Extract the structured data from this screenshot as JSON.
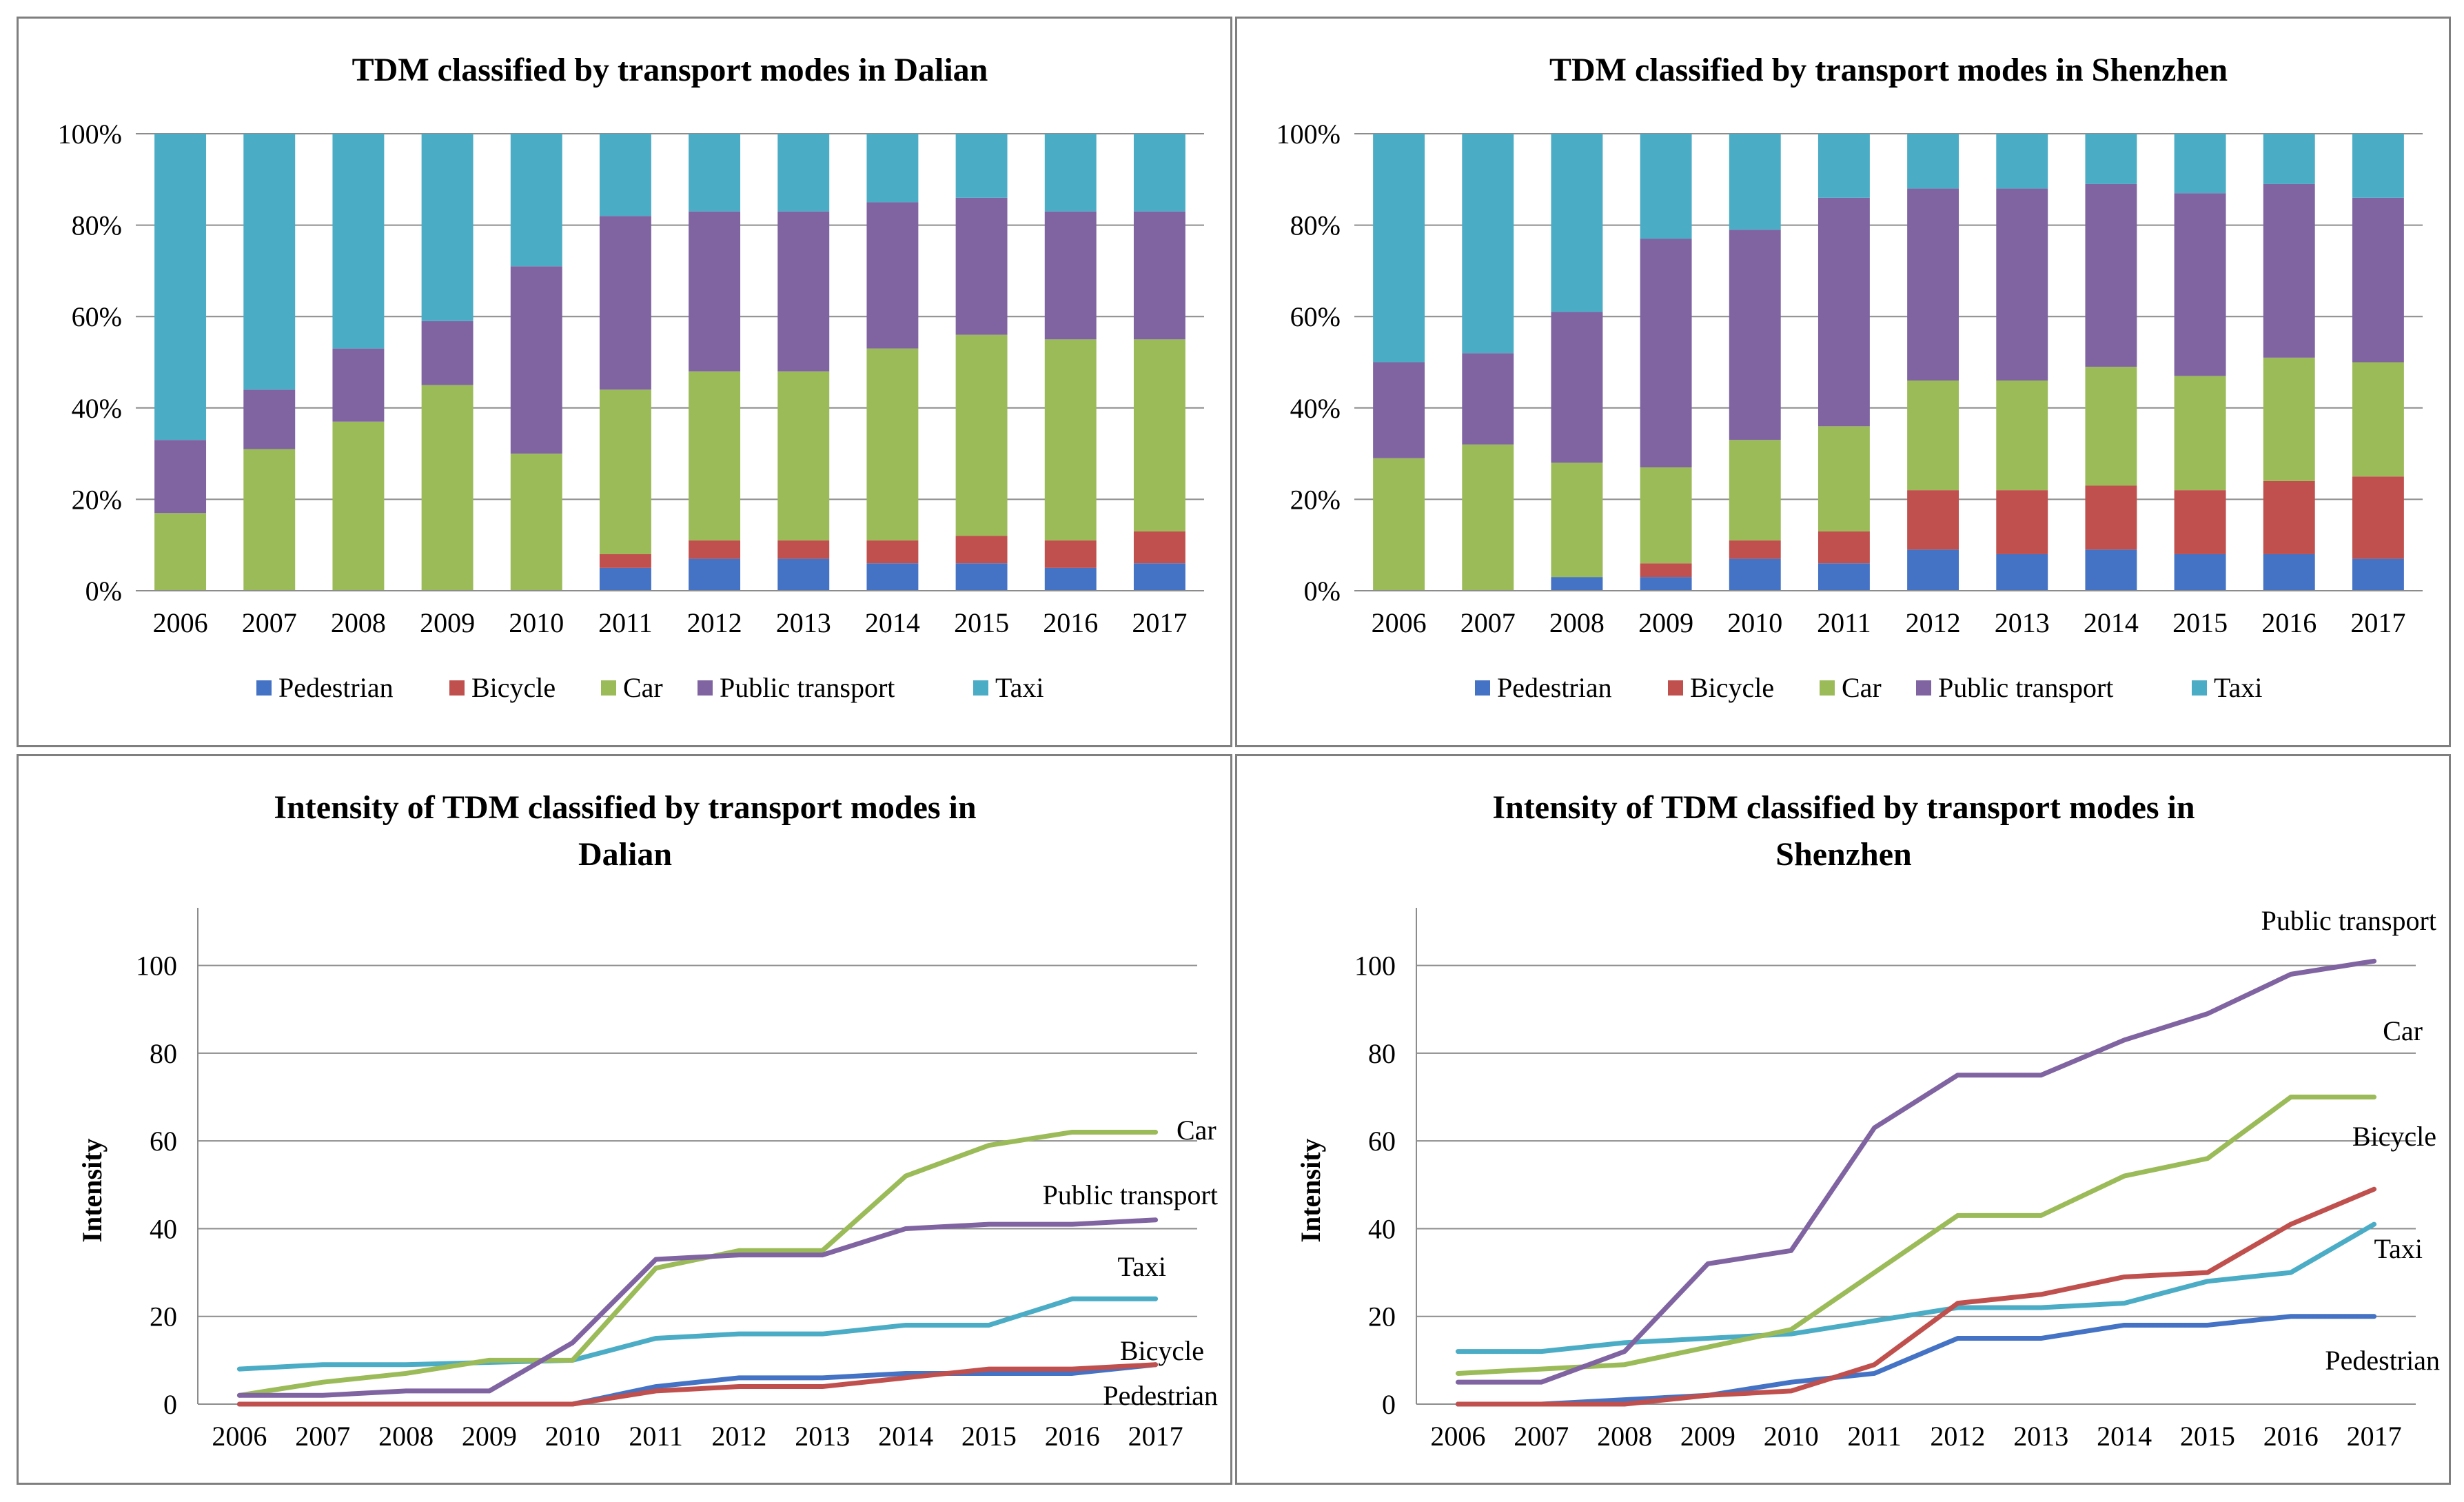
{
  "chart_data": [
    {
      "id": "dalian-share",
      "type": "bar",
      "stacked": true,
      "title": "TDM classified by transport modes in Dalian",
      "categories": [
        "2006",
        "2007",
        "2008",
        "2009",
        "2010",
        "2011",
        "2012",
        "2013",
        "2014",
        "2015",
        "2016",
        "2017"
      ],
      "yticks": [
        "0%",
        "20%",
        "40%",
        "60%",
        "80%",
        "100%"
      ],
      "ylim": [
        0,
        100
      ],
      "grid": true,
      "legend": "bottom",
      "series": [
        {
          "name": "Pedestrian",
          "color": "#4472c4",
          "values": [
            0,
            0,
            0,
            0,
            0,
            5,
            7,
            7,
            6,
            6,
            5,
            6
          ]
        },
        {
          "name": "Bicycle",
          "color": "#c0504d",
          "values": [
            0,
            0,
            0,
            0,
            0,
            3,
            4,
            4,
            5,
            6,
            6,
            7
          ]
        },
        {
          "name": "Car",
          "color": "#9bbb59",
          "values": [
            17,
            31,
            37,
            45,
            30,
            36,
            37,
            37,
            42,
            44,
            44,
            42
          ]
        },
        {
          "name": "Public transport",
          "color": "#8064a2",
          "values": [
            16,
            13,
            16,
            14,
            41,
            38,
            35,
            35,
            32,
            30,
            28,
            28
          ]
        },
        {
          "name": "Taxi",
          "color": "#4bacc6",
          "values": [
            67,
            56,
            47,
            41,
            29,
            18,
            17,
            17,
            15,
            14,
            17,
            17
          ]
        }
      ]
    },
    {
      "id": "shenzhen-share",
      "type": "bar",
      "stacked": true,
      "title": "TDM classified by transport modes in Shenzhen",
      "categories": [
        "2006",
        "2007",
        "2008",
        "2009",
        "2010",
        "2011",
        "2012",
        "2013",
        "2014",
        "2015",
        "2016",
        "2017"
      ],
      "yticks": [
        "0%",
        "20%",
        "40%",
        "60%",
        "80%",
        "100%"
      ],
      "ylim": [
        0,
        100
      ],
      "grid": true,
      "legend": "bottom",
      "series": [
        {
          "name": "Pedestrian",
          "color": "#4472c4",
          "values": [
            0,
            0,
            3,
            3,
            7,
            6,
            9,
            8,
            9,
            8,
            8,
            7
          ]
        },
        {
          "name": "Bicycle",
          "color": "#c0504d",
          "values": [
            0,
            0,
            0,
            3,
            4,
            7,
            13,
            14,
            14,
            14,
            16,
            18
          ]
        },
        {
          "name": "Car",
          "color": "#9bbb59",
          "values": [
            29,
            32,
            25,
            21,
            22,
            23,
            24,
            24,
            26,
            25,
            27,
            25
          ]
        },
        {
          "name": "Public transport",
          "color": "#8064a2",
          "values": [
            21,
            20,
            33,
            50,
            46,
            50,
            42,
            42,
            40,
            40,
            38,
            36
          ]
        },
        {
          "name": "Taxi",
          "color": "#4bacc6",
          "values": [
            50,
            48,
            39,
            23,
            21,
            14,
            12,
            12,
            11,
            13,
            11,
            14
          ]
        }
      ]
    },
    {
      "id": "dalian-intensity",
      "type": "line",
      "title_lines": [
        "Intensity of TDM classified by transport modes in",
        "Dalian"
      ],
      "ylabel": "Intensity",
      "categories": [
        "2006",
        "2007",
        "2008",
        "2009",
        "2010",
        "2011",
        "2012",
        "2013",
        "2014",
        "2015",
        "2016",
        "2017"
      ],
      "yticks": [
        "0",
        "20",
        "40",
        "60",
        "80",
        "100"
      ],
      "ylim": [
        0,
        110
      ],
      "grid": true,
      "series": [
        {
          "name": "Taxi",
          "color": "#4bacc6",
          "values": [
            8,
            9,
            9,
            9.5,
            10,
            15,
            16,
            16,
            18,
            18,
            24,
            24
          ]
        },
        {
          "name": "Pedestrian",
          "color": "#4472c4",
          "values": [
            0,
            0,
            0,
            0,
            0,
            4,
            6,
            6,
            7,
            7,
            7,
            9
          ]
        },
        {
          "name": "Bicycle",
          "color": "#c0504d",
          "values": [
            0,
            0,
            0,
            0,
            0,
            3,
            4,
            4,
            6,
            8,
            8,
            9
          ]
        },
        {
          "name": "Car",
          "color": "#9bbb59",
          "values": [
            2,
            5,
            7,
            10,
            10,
            31,
            35,
            35,
            52,
            59,
            62,
            62
          ]
        },
        {
          "name": "Public transport",
          "color": "#8064a2",
          "values": [
            2,
            2,
            3,
            3,
            14,
            33,
            34,
            34,
            40,
            41,
            41,
            42
          ]
        }
      ],
      "annotations": [
        {
          "text": "Car",
          "series": "Car"
        },
        {
          "text": "Public transport",
          "series": "Public transport"
        },
        {
          "text": "Taxi",
          "series": "Taxi"
        },
        {
          "text": "Bicycle",
          "series": "Bicycle"
        },
        {
          "text": "Pedestrian",
          "series": "Pedestrian"
        }
      ]
    },
    {
      "id": "shenzhen-intensity",
      "type": "line",
      "title_lines": [
        "Intensity of TDM classified by transport modes in",
        "Shenzhen"
      ],
      "ylabel": "Intensity",
      "categories": [
        "2006",
        "2007",
        "2008",
        "2009",
        "2010",
        "2011",
        "2012",
        "2013",
        "2014",
        "2015",
        "2016",
        "2017"
      ],
      "yticks": [
        "0",
        "20",
        "40",
        "60",
        "80",
        "100"
      ],
      "ylim": [
        0,
        110
      ],
      "grid": true,
      "series": [
        {
          "name": "Taxi",
          "color": "#4bacc6",
          "values": [
            12,
            12,
            14,
            15,
            16,
            19,
            22,
            22,
            23,
            28,
            30,
            41
          ]
        },
        {
          "name": "Pedestrian",
          "color": "#4472c4",
          "values": [
            0,
            0,
            1,
            2,
            5,
            7,
            15,
            15,
            18,
            18,
            20,
            20
          ]
        },
        {
          "name": "Bicycle",
          "color": "#c0504d",
          "values": [
            0,
            0,
            0,
            2,
            3,
            9,
            23,
            25,
            29,
            30,
            41,
            49
          ]
        },
        {
          "name": "Car",
          "color": "#9bbb59",
          "values": [
            7,
            8,
            9,
            13,
            17,
            30,
            43,
            43,
            52,
            56,
            70,
            70
          ]
        },
        {
          "name": "Public transport",
          "color": "#8064a2",
          "values": [
            5,
            5,
            12,
            32,
            35,
            63,
            75,
            75,
            83,
            89,
            98,
            101
          ]
        }
      ],
      "annotations": [
        {
          "text": "Public transport",
          "series": "Public transport"
        },
        {
          "text": "Car",
          "series": "Car"
        },
        {
          "text": "Bicycle",
          "series": "Bicycle"
        },
        {
          "text": "Taxi",
          "series": "Taxi"
        },
        {
          "text": "Pedestrian",
          "series": "Pedestrian"
        }
      ]
    }
  ]
}
